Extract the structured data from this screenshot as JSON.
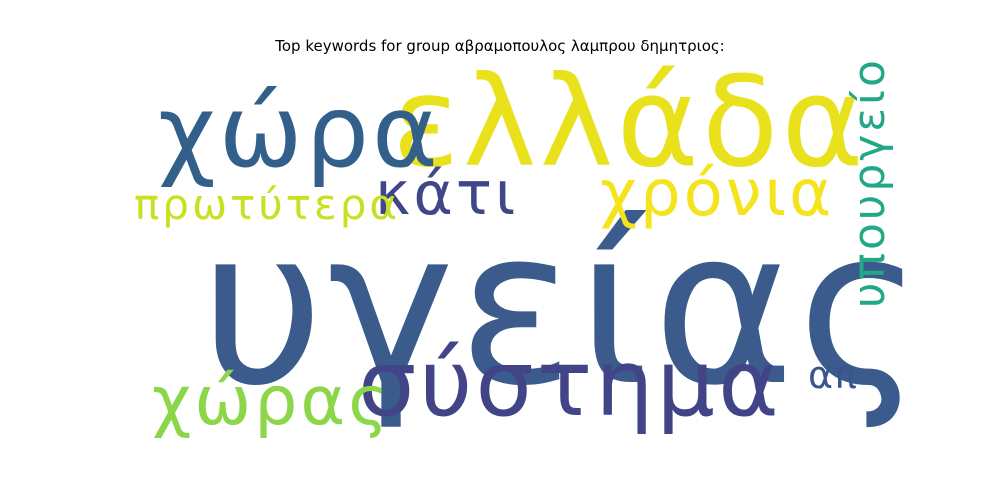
{
  "title": "Top keywords for group αβραμοπουλος λαμπρου δημητριος:",
  "words": {
    "ygeias": {
      "text": "υγείας",
      "color": "#3b5b8c"
    },
    "ellada": {
      "text": "ελλάδα",
      "color": "#e8e11c"
    },
    "xora": {
      "text": "χώρα",
      "color": "#33608a"
    },
    "systima": {
      "text": "σύστημα",
      "color": "#414487"
    },
    "xronia": {
      "text": "χρόνια",
      "color": "#f5e31e"
    },
    "xoras": {
      "text": "χώρας",
      "color": "#8cd649"
    },
    "kati": {
      "text": "κάτι",
      "color": "#3f4788"
    },
    "proterya": {
      "text": "πρωτύτερα",
      "color": "#c8e020"
    },
    "ap": {
      "text": "απ",
      "color": "#39568c"
    },
    "ypourgeio": {
      "text": "υπουργείο",
      "color": "#22a884"
    }
  }
}
